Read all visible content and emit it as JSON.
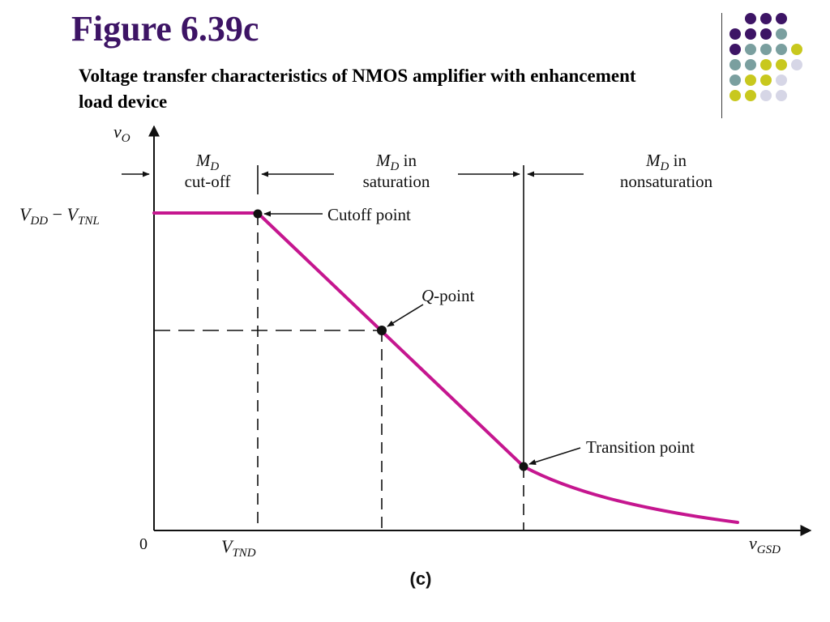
{
  "slide": {
    "title": "Figure 6.39c",
    "subtitle": "Voltage transfer characteristics of NMOS amplifier with enhancement load device"
  },
  "palette": {
    "title": "#3d1465",
    "curve": "#c5168f",
    "dots": [
      "#3d1465",
      "#7a9f9f",
      "#c8c81e",
      "#d6d6e6"
    ]
  },
  "diagram": {
    "caption": "(c)",
    "axes": {
      "y_label": {
        "base": "v",
        "sub": "O"
      },
      "x_label": {
        "base": "v",
        "sub": "GSD"
      },
      "origin": "0"
    },
    "levels": {
      "vdd_minus_vtnl": {
        "a": "V",
        "a_sub": "DD",
        "op": " − ",
        "b": "V",
        "b_sub": "TNL"
      },
      "vtnd": {
        "base": "V",
        "sub": "TND"
      }
    },
    "regions": {
      "cutoff": {
        "line1": {
          "base": "M",
          "sub": "D"
        },
        "line2": "cut-off"
      },
      "saturation": {
        "line1": {
          "base": "M",
          "sub": "D",
          "tail": " in"
        },
        "line2": "saturation"
      },
      "nonsaturation": {
        "line1": {
          "base": "M",
          "sub": "D",
          "tail": " in"
        },
        "line2": "nonsaturation"
      }
    },
    "points": {
      "cutoff": "Cutoff point",
      "q": {
        "italic": "Q",
        "rest": "-point"
      },
      "transition": "Transition point"
    }
  }
}
